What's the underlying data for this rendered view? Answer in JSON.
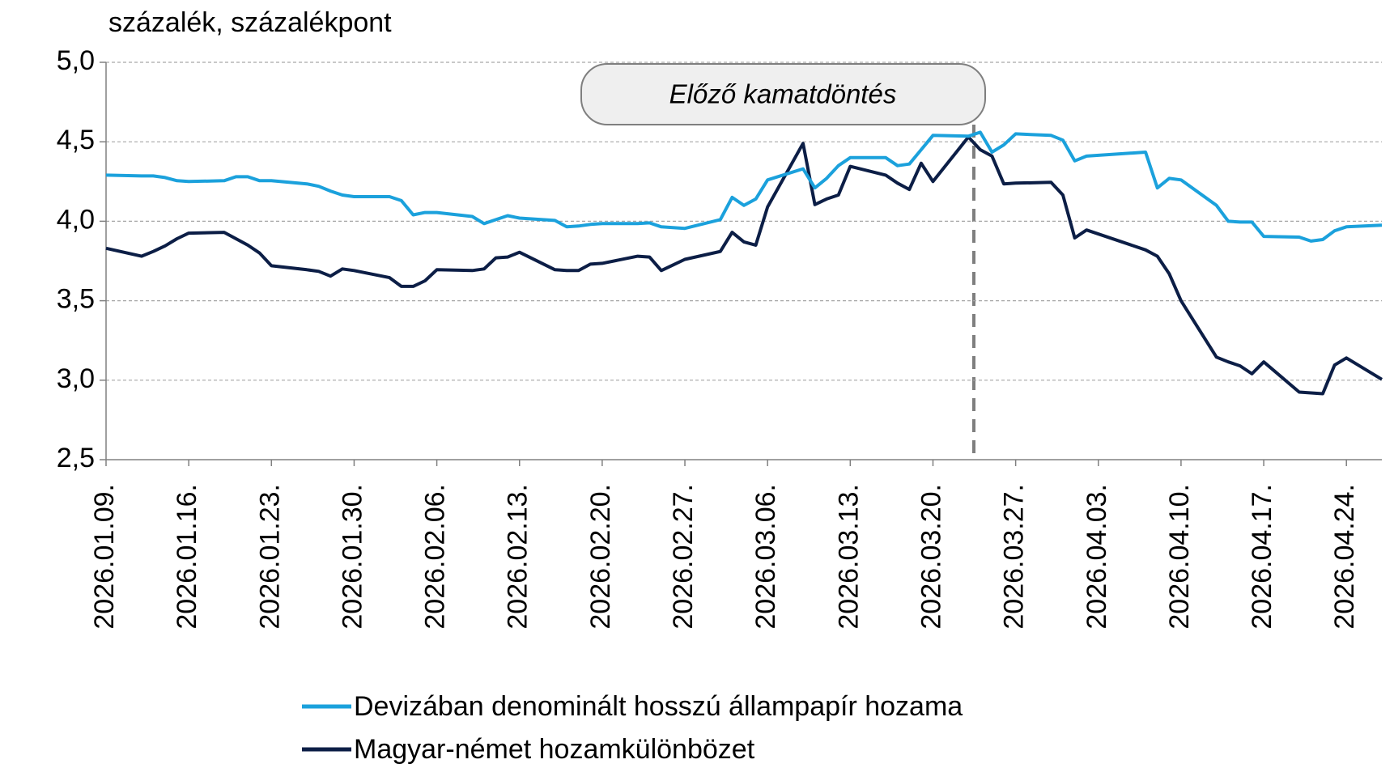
{
  "chart_data": {
    "type": "line",
    "ylabel": "százalék, százalékpont",
    "annotation": "Előző kamatdöntés",
    "x": [
      "2026.01.09.",
      "2026.01.12.",
      "2026.01.13.",
      "2026.01.14.",
      "2026.01.15.",
      "2026.01.16.",
      "2026.01.19.",
      "2026.01.20.",
      "2026.01.21.",
      "2026.01.22.",
      "2026.01.23.",
      "2026.01.26.",
      "2026.01.27.",
      "2026.01.28.",
      "2026.01.29.",
      "2026.01.30.",
      "2026.02.02.",
      "2026.02.03.",
      "2026.02.04.",
      "2026.02.05.",
      "2026.02.06.",
      "2026.02.09.",
      "2026.02.10.",
      "2026.02.11.",
      "2026.02.12.",
      "2026.02.13.",
      "2026.02.16.",
      "2026.02.17.",
      "2026.02.18.",
      "2026.02.19.",
      "2026.02.20.",
      "2026.02.23.",
      "2026.02.24.",
      "2026.02.25.",
      "2026.02.26.",
      "2026.02.27.",
      "2026.03.02.",
      "2026.03.03.",
      "2026.03.04.",
      "2026.03.05.",
      "2026.03.06.",
      "2026.03.09.",
      "2026.03.10.",
      "2026.03.11.",
      "2026.03.12.",
      "2026.03.13.",
      "2026.03.16.",
      "2026.03.17.",
      "2026.03.18.",
      "2026.03.19.",
      "2026.03.20.",
      "2026.03.23.",
      "2026.03.24.",
      "2026.03.25.",
      "2026.03.26.",
      "2026.03.27.",
      "2026.03.30.",
      "2026.03.31.",
      "2026.04.01.",
      "2026.04.02.",
      "2026.04.07.",
      "2026.04.08.",
      "2026.04.09.",
      "2026.04.10.",
      "2026.04.13.",
      "2026.04.14.",
      "2026.04.15.",
      "2026.04.16.",
      "2026.04.17.",
      "2026.04.20.",
      "2026.04.21.",
      "2026.04.22.",
      "2026.04.23.",
      "2026.04.24.",
      "2026.04.27."
    ],
    "series": [
      {
        "name": "Devizában denominált hosszú állampapír hozama",
        "color": "#1ba1dc",
        "values": [
          4.29,
          4.285,
          4.285,
          4.275,
          4.255,
          4.25,
          4.255,
          4.28,
          4.28,
          4.255,
          4.255,
          4.235,
          4.22,
          4.19,
          4.165,
          4.155,
          4.155,
          4.13,
          4.04,
          4.055,
          4.055,
          4.03,
          3.985,
          4.01,
          4.035,
          4.02,
          4.005,
          3.965,
          3.97,
          3.98,
          3.985,
          3.985,
          3.99,
          3.965,
          3.96,
          3.955,
          4.01,
          4.15,
          4.1,
          4.14,
          4.26,
          4.33,
          4.21,
          4.27,
          4.35,
          4.4,
          4.4,
          4.35,
          4.36,
          4.45,
          4.54,
          4.535,
          4.56,
          4.435,
          4.48,
          4.55,
          4.54,
          4.51,
          4.38,
          4.41,
          4.435,
          4.21,
          4.27,
          4.26,
          4.1,
          4.0,
          3.995,
          3.995,
          3.905,
          3.9,
          3.875,
          3.885,
          3.94,
          3.965,
          3.975
        ]
      },
      {
        "name": "Magyar-német hozamkülönbözet",
        "color": "#0c1e46",
        "values": [
          3.83,
          3.78,
          3.81,
          3.845,
          3.89,
          3.925,
          3.93,
          3.89,
          3.85,
          3.8,
          3.72,
          3.695,
          3.685,
          3.655,
          3.7,
          3.69,
          3.645,
          3.59,
          3.59,
          3.625,
          3.695,
          3.69,
          3.7,
          3.77,
          3.775,
          3.805,
          3.695,
          3.69,
          3.69,
          3.73,
          3.735,
          3.78,
          3.775,
          3.69,
          3.725,
          3.76,
          3.81,
          3.93,
          3.87,
          3.85,
          4.09,
          4.49,
          4.105,
          4.14,
          4.165,
          4.345,
          4.29,
          4.24,
          4.2,
          4.365,
          4.25,
          4.53,
          4.45,
          4.41,
          4.235,
          4.24,
          4.245,
          4.165,
          3.895,
          3.945,
          3.82,
          3.78,
          3.67,
          3.5,
          3.145,
          3.115,
          3.09,
          3.04,
          3.115,
          2.925,
          2.92,
          2.915,
          3.095,
          3.14,
          3.005
        ]
      }
    ],
    "xlim": [
      "2026.01.09.",
      "2026.04.27."
    ],
    "xticks": [
      "2026.01.09.",
      "2026.01.16.",
      "2026.01.23.",
      "2026.01.30.",
      "2026.02.06.",
      "2026.02.13.",
      "2026.02.20.",
      "2026.02.27.",
      "2026.03.06.",
      "2026.03.13.",
      "2026.03.20.",
      "2026.03.27.",
      "2026.04.03.",
      "2026.04.10.",
      "2026.04.17.",
      "2026.04.24."
    ],
    "ylim": [
      2.5,
      5.0
    ],
    "yticks": [
      {
        "value": 2.5,
        "label": "2,5"
      },
      {
        "value": 3.0,
        "label": "3,0"
      },
      {
        "value": 3.5,
        "label": "3,5"
      },
      {
        "value": 4.0,
        "label": "4,0"
      },
      {
        "value": 4.5,
        "label": "4,5"
      },
      {
        "value": 5.0,
        "label": "5,0"
      }
    ],
    "grid": true
  }
}
